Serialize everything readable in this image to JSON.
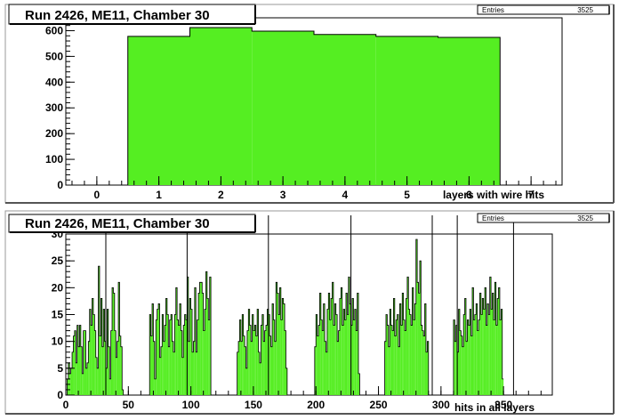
{
  "chart_data": [
    {
      "type": "bar",
      "title": "Run 2426, ME11, Chamber 30",
      "xlabel": "layers with wire hits",
      "ylabel": "",
      "stats": {
        "label": "Entries",
        "value": "3525"
      },
      "xlim": [
        -0.5,
        7.5
      ],
      "ylim": [
        0,
        650
      ],
      "xticks": [
        0,
        1,
        2,
        3,
        4,
        5,
        6,
        7
      ],
      "yticks": [
        0,
        100,
        200,
        300,
        400,
        500,
        600
      ],
      "categories": [
        1,
        2,
        3,
        4,
        5,
        6
      ],
      "values": [
        578,
        612,
        598,
        585,
        578,
        574
      ],
      "fill_color": "#55ee22",
      "grid": false,
      "legend": "top-right"
    },
    {
      "type": "bar",
      "title": "Run 2426, ME11, Chamber 30",
      "xlabel": "hits in all layers",
      "ylabel": "",
      "stats": {
        "label": "Entries",
        "value": "3525"
      },
      "xlim": [
        0,
        389
      ],
      "ylim": [
        0,
        30
      ],
      "xticks": [
        0,
        50,
        100,
        150,
        200,
        250,
        300,
        350
      ],
      "yticks": [
        0,
        5,
        10,
        15,
        20,
        25,
        30
      ],
      "bin_width": 1,
      "x_start": 1,
      "values": [
        3,
        6,
        4,
        5,
        8,
        11,
        12,
        6,
        13,
        9,
        13,
        9,
        4,
        12,
        12,
        5,
        6,
        10,
        16,
        13,
        18,
        15,
        12,
        7,
        5,
        24,
        11,
        18,
        9,
        16,
        10,
        5,
        16,
        9,
        3,
        12,
        20,
        19,
        12,
        7,
        10,
        21,
        11,
        9,
        1,
        0,
        0,
        0,
        0,
        0,
        0,
        0,
        0,
        0,
        0,
        0,
        0,
        0,
        0,
        0,
        0,
        0,
        0,
        0,
        0,
        0,
        15,
        11,
        17,
        10,
        3,
        14,
        16,
        17,
        7,
        9,
        15,
        10,
        13,
        18,
        15,
        9,
        14,
        15,
        10,
        8,
        15,
        20,
        14,
        13,
        17,
        12,
        7,
        13,
        15,
        14,
        22,
        10,
        18,
        16,
        8,
        10,
        20,
        8,
        14,
        19,
        21,
        21,
        19,
        12,
        16,
        23,
        18,
        14,
        22,
        0,
        0,
        0,
        0,
        0,
        0,
        0,
        0,
        0,
        0,
        0,
        0,
        0,
        0,
        0,
        0,
        0,
        0,
        0,
        0,
        0,
        8,
        10,
        14,
        10,
        15,
        11,
        9,
        5,
        12,
        16,
        13,
        10,
        15,
        12,
        13,
        11,
        16,
        8,
        6,
        13,
        15,
        10,
        12,
        13,
        16,
        15,
        11,
        9,
        17,
        14,
        10,
        21,
        19,
        15,
        20,
        14,
        18,
        17,
        12,
        5,
        0,
        0,
        0,
        0,
        0,
        0,
        0,
        0,
        0,
        0,
        0,
        0,
        0,
        0,
        0,
        0,
        0,
        0,
        0,
        0,
        0,
        0,
        9,
        15,
        11,
        13,
        19,
        14,
        12,
        17,
        10,
        8,
        16,
        19,
        14,
        18,
        21,
        13,
        17,
        15,
        10,
        12,
        18,
        20,
        13,
        16,
        14,
        19,
        15,
        22,
        17,
        13,
        18,
        14,
        16,
        12,
        19,
        4,
        0,
        0,
        0,
        0,
        0,
        0,
        0,
        0,
        0,
        0,
        0,
        0,
        0,
        0,
        0,
        0,
        0,
        0,
        0,
        0,
        10,
        15,
        13,
        9,
        16,
        13,
        12,
        18,
        11,
        14,
        15,
        9,
        17,
        13,
        19,
        14,
        12,
        18,
        22,
        16,
        15,
        13,
        20,
        14,
        17,
        29,
        21,
        19,
        25,
        13,
        12,
        11,
        17,
        8,
        10,
        0,
        0,
        0,
        0,
        0,
        0,
        0,
        0,
        0,
        0,
        0,
        0,
        0,
        0,
        0,
        0,
        0,
        0,
        0,
        0,
        14,
        10,
        13,
        8,
        16,
        12,
        11,
        9,
        15,
        18,
        10,
        14,
        13,
        16,
        11,
        20,
        14,
        15,
        17,
        12,
        14,
        19,
        15,
        18,
        16,
        20,
        13,
        17,
        15,
        22,
        16,
        19,
        14,
        21,
        13,
        18,
        20,
        14,
        16,
        3
      ],
      "tall_lines_x": [
        32,
        97,
        162,
        228,
        293,
        313,
        358
      ],
      "fill_color": "#55ee22",
      "grid": false,
      "legend": "top-right"
    }
  ]
}
